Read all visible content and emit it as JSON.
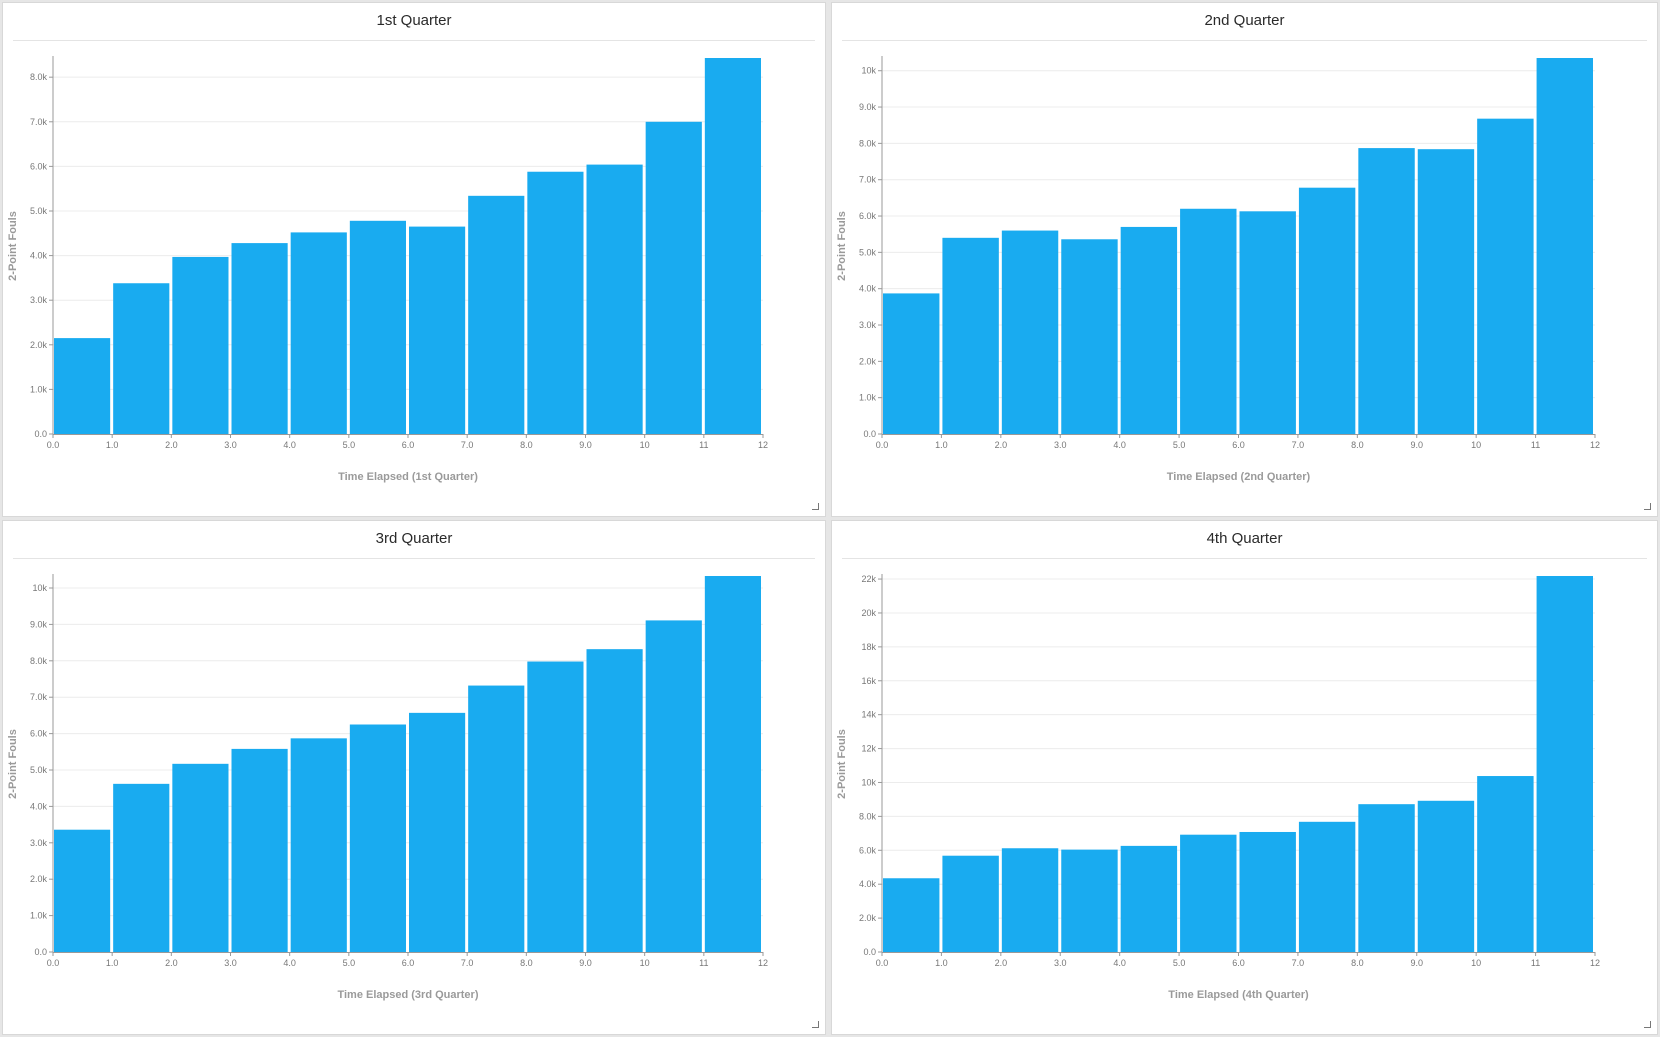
{
  "colors": {
    "bar": "#19abf0",
    "grid": "#ececec",
    "axis": "#999999"
  },
  "icons": {
    "resize": "resize-handle-icon"
  },
  "chart_data": [
    {
      "type": "bar",
      "title": "1st Quarter",
      "xlabel": "Time Elapsed (1st Quarter)",
      "ylabel": "2-Point Fouls",
      "x_ticks": [
        "0.0",
        "1.0",
        "2.0",
        "3.0",
        "4.0",
        "5.0",
        "6.0",
        "7.0",
        "8.0",
        "9.0",
        "10",
        "11",
        "12"
      ],
      "bin_edges": [
        0,
        1,
        2,
        3,
        4,
        5,
        6,
        7,
        8,
        9,
        10,
        11,
        12
      ],
      "values": [
        2150,
        3380,
        3970,
        4280,
        4520,
        4780,
        4650,
        5340,
        5880,
        6040,
        7000,
        8430
      ],
      "ylim": [
        0,
        8430
      ],
      "y_ticks": [
        0,
        1000,
        2000,
        3000,
        4000,
        5000,
        6000,
        7000,
        8000
      ],
      "y_tick_labels": [
        "0.0",
        "1.0k",
        "2.0k",
        "3.0k",
        "4.0k",
        "5.0k",
        "6.0k",
        "7.0k",
        "8.0k"
      ],
      "grid": true
    },
    {
      "type": "bar",
      "title": "2nd Quarter",
      "xlabel": "Time Elapsed (2nd Quarter)",
      "ylabel": "2-Point Fouls",
      "x_ticks": [
        "0.0",
        "1.0",
        "2.0",
        "3.0",
        "4.0",
        "5.0",
        "6.0",
        "7.0",
        "8.0",
        "9.0",
        "10",
        "11",
        "12"
      ],
      "bin_edges": [
        0,
        1,
        2,
        3,
        4,
        5,
        6,
        7,
        8,
        9,
        10,
        11,
        12
      ],
      "values": [
        3870,
        5400,
        5600,
        5360,
        5700,
        6200,
        6130,
        6780,
        7870,
        7840,
        8680,
        10350
      ],
      "ylim": [
        0,
        10350
      ],
      "y_ticks": [
        0,
        1000,
        2000,
        3000,
        4000,
        5000,
        6000,
        7000,
        8000,
        9000,
        10000
      ],
      "y_tick_labels": [
        "0.0",
        "1.0k",
        "2.0k",
        "3.0k",
        "4.0k",
        "5.0k",
        "6.0k",
        "7.0k",
        "8.0k",
        "9.0k",
        "10k"
      ],
      "grid": true
    },
    {
      "type": "bar",
      "title": "3rd Quarter",
      "xlabel": "Time Elapsed (3rd Quarter)",
      "ylabel": "2-Point Fouls",
      "x_ticks": [
        "0.0",
        "1.0",
        "2.0",
        "3.0",
        "4.0",
        "5.0",
        "6.0",
        "7.0",
        "8.0",
        "9.0",
        "10",
        "11",
        "12"
      ],
      "bin_edges": [
        0,
        1,
        2,
        3,
        4,
        5,
        6,
        7,
        8,
        9,
        10,
        11,
        12
      ],
      "values": [
        3360,
        4620,
        5170,
        5580,
        5870,
        6250,
        6570,
        7320,
        7980,
        8320,
        9110,
        10330
      ],
      "ylim": [
        0,
        10330
      ],
      "y_ticks": [
        0,
        1000,
        2000,
        3000,
        4000,
        5000,
        6000,
        7000,
        8000,
        9000,
        10000
      ],
      "y_tick_labels": [
        "0.0",
        "1.0k",
        "2.0k",
        "3.0k",
        "4.0k",
        "5.0k",
        "6.0k",
        "7.0k",
        "8.0k",
        "9.0k",
        "10k"
      ],
      "grid": true
    },
    {
      "type": "bar",
      "title": "4th Quarter",
      "xlabel": "Time Elapsed (4th Quarter)",
      "ylabel": "2-Point Fouls",
      "x_ticks": [
        "0.0",
        "1.0",
        "2.0",
        "3.0",
        "4.0",
        "5.0",
        "6.0",
        "7.0",
        "8.0",
        "9.0",
        "10",
        "11",
        "12"
      ],
      "bin_edges": [
        0,
        1,
        2,
        3,
        4,
        5,
        6,
        7,
        8,
        9,
        10,
        11,
        12
      ],
      "values": [
        4350,
        5680,
        6120,
        6040,
        6260,
        6920,
        7080,
        7680,
        8720,
        8920,
        10380,
        22180
      ],
      "ylim": [
        0,
        22180
      ],
      "y_ticks": [
        0,
        2000,
        4000,
        6000,
        8000,
        10000,
        12000,
        14000,
        16000,
        18000,
        20000,
        22000
      ],
      "y_tick_labels": [
        "0.0",
        "2.0k",
        "4.0k",
        "6.0k",
        "8.0k",
        "10k",
        "12k",
        "14k",
        "16k",
        "18k",
        "20k",
        "22k"
      ],
      "grid": true
    }
  ]
}
